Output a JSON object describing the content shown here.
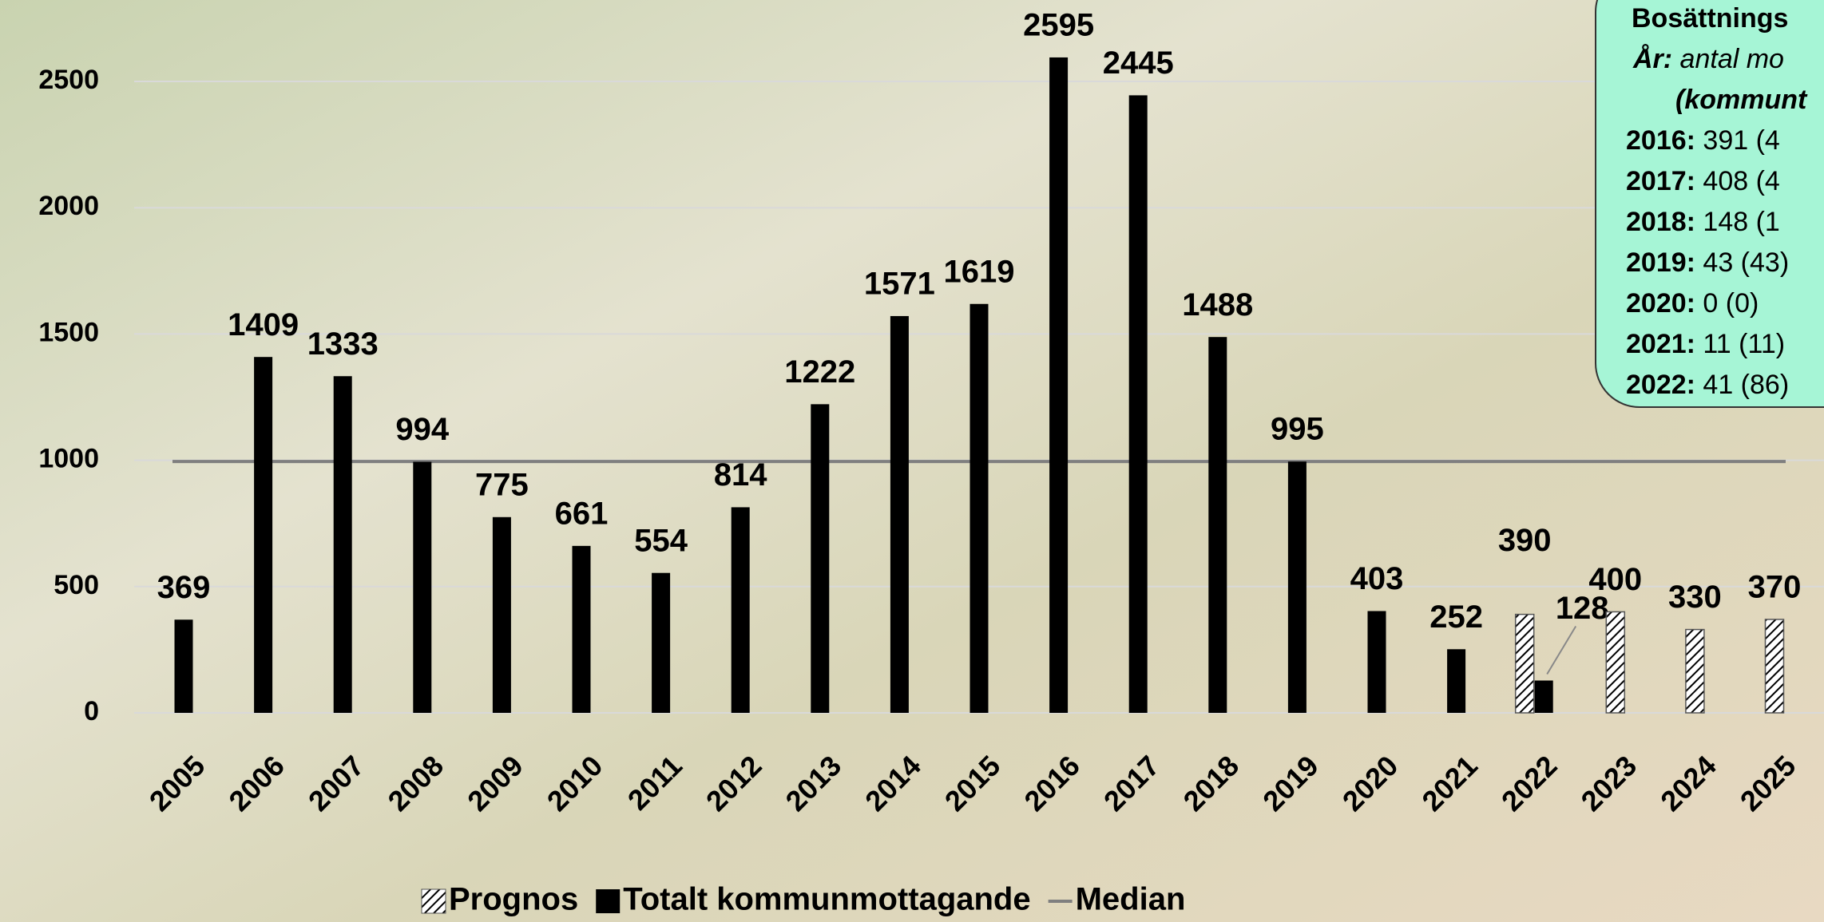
{
  "chart_data": {
    "type": "bar",
    "categories": [
      "2005",
      "2006",
      "2007",
      "2008",
      "2009",
      "2010",
      "2011",
      "2012",
      "2013",
      "2014",
      "2015",
      "2016",
      "2017",
      "2018",
      "2019",
      "2020",
      "2021",
      "2022",
      "2023",
      "2024",
      "2025"
    ],
    "series": [
      {
        "name": "Prognos",
        "color": "#000000",
        "hatched": true,
        "values": [
          null,
          null,
          null,
          null,
          null,
          null,
          null,
          null,
          null,
          null,
          null,
          null,
          null,
          null,
          null,
          null,
          null,
          390,
          400,
          330,
          370
        ]
      },
      {
        "name": "Totalt kommunmottagande",
        "color": "#000000",
        "hatched": false,
        "values": [
          369,
          1409,
          1333,
          994,
          775,
          661,
          554,
          814,
          1222,
          1571,
          1619,
          2595,
          2445,
          1488,
          995,
          403,
          252,
          128,
          null,
          null,
          null
        ]
      }
    ],
    "median": {
      "name": "Median",
      "value": 995,
      "color": "#7f7f7f"
    },
    "ylim": [
      0,
      2600
    ],
    "yticks": [
      0,
      500,
      1000,
      1500,
      2000,
      2500
    ],
    "grid": true,
    "info_box": {
      "title": "Bosättnings",
      "subtitle_bold": "År:",
      "subtitle": " antal mo",
      "subtitle2": "(kommunt",
      "rows": [
        {
          "year": "2016:",
          "text": " 391 (4"
        },
        {
          "year": "2017:",
          "text": " 408 (4"
        },
        {
          "year": "2018:",
          "text": " 148 (1"
        },
        {
          "year": "2019:",
          "text": " 43 (43)"
        },
        {
          "year": "2020:",
          "text": " 0 (0)"
        },
        {
          "year": "2021:",
          "text": " 11 (11)"
        },
        {
          "year": "2022:",
          "text": " 41 (86)"
        }
      ]
    }
  }
}
